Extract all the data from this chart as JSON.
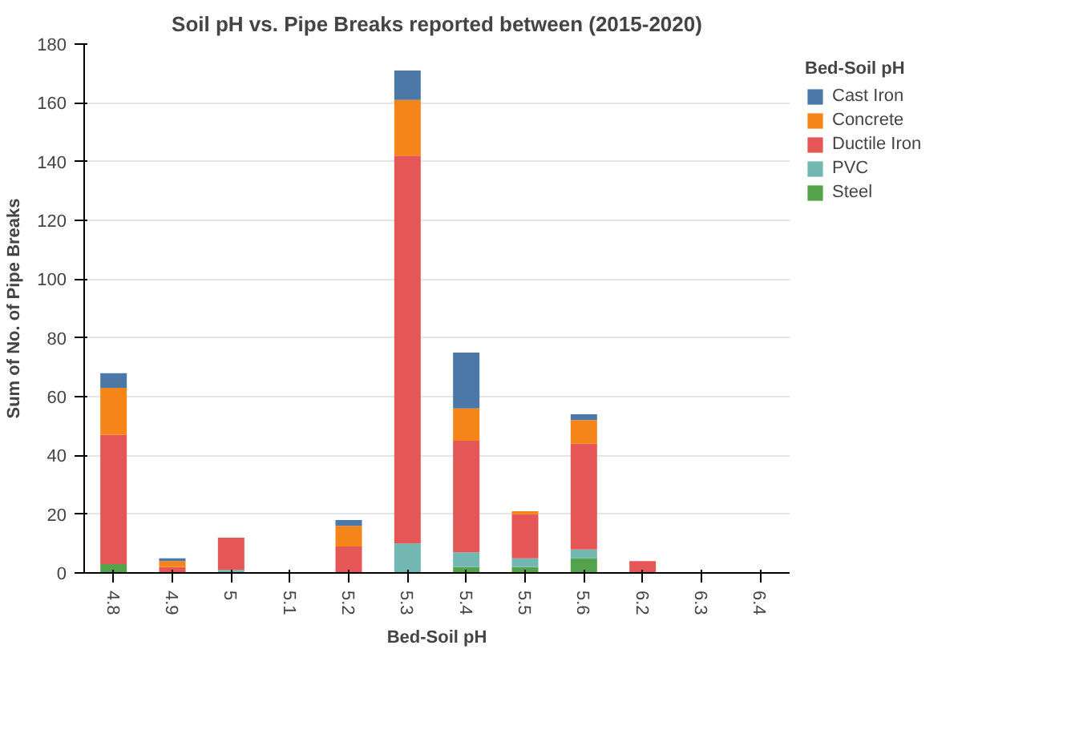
{
  "chart_data": {
    "type": "bar",
    "stacked": true,
    "title": "Soil pH vs. Pipe Breaks reported between (2015-2020)",
    "xlabel": "Bed-Soil pH",
    "ylabel": "Sum of No. of Pipe Breaks",
    "legend_title": "Bed-Soil pH",
    "legend": "top right",
    "grid": "y",
    "categories": [
      "4.8",
      "4.9",
      "5",
      "5.1",
      "5.2",
      "5.3",
      "5.4",
      "5.5",
      "5.6",
      "6.2",
      "6.3",
      "6.4"
    ],
    "ylim": [
      0,
      180
    ],
    "yticks": [
      0,
      20,
      40,
      60,
      80,
      100,
      120,
      140,
      160,
      180
    ],
    "series": [
      {
        "name": "Steel",
        "color": "#54a24b",
        "values": [
          3,
          null,
          null,
          null,
          null,
          null,
          2,
          2,
          5,
          null,
          null,
          null
        ]
      },
      {
        "name": "PVC",
        "color": "#72b7b2",
        "values": [
          null,
          null,
          1,
          null,
          null,
          10,
          5,
          3,
          3,
          null,
          null,
          null
        ]
      },
      {
        "name": "Ductile Iron",
        "color": "#e45756",
        "values": [
          44,
          2,
          11,
          null,
          9,
          132,
          38,
          15,
          36,
          4,
          null,
          null
        ]
      },
      {
        "name": "Concrete",
        "color": "#f58518",
        "values": [
          16,
          2,
          null,
          null,
          7,
          19,
          11,
          1,
          8,
          null,
          null,
          null
        ]
      },
      {
        "name": "Cast Iron",
        "color": "#4c78a8",
        "values": [
          5,
          1,
          null,
          null,
          2,
          10,
          19,
          null,
          2,
          null,
          null,
          null
        ]
      }
    ]
  }
}
